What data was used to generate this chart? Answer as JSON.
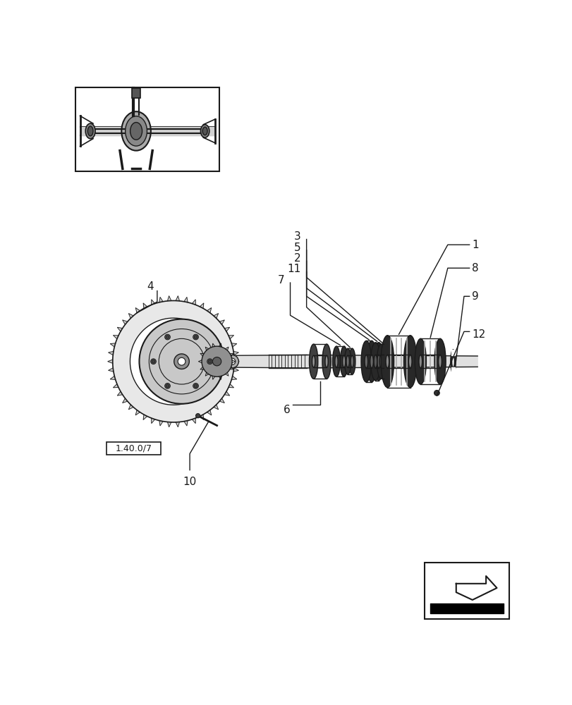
{
  "bg_color": "#ffffff",
  "line_color": "#1a1a1a",
  "fig_width": 8.12,
  "fig_height": 10.0,
  "dpi": 100,
  "ref_label": "1.40.0/7"
}
